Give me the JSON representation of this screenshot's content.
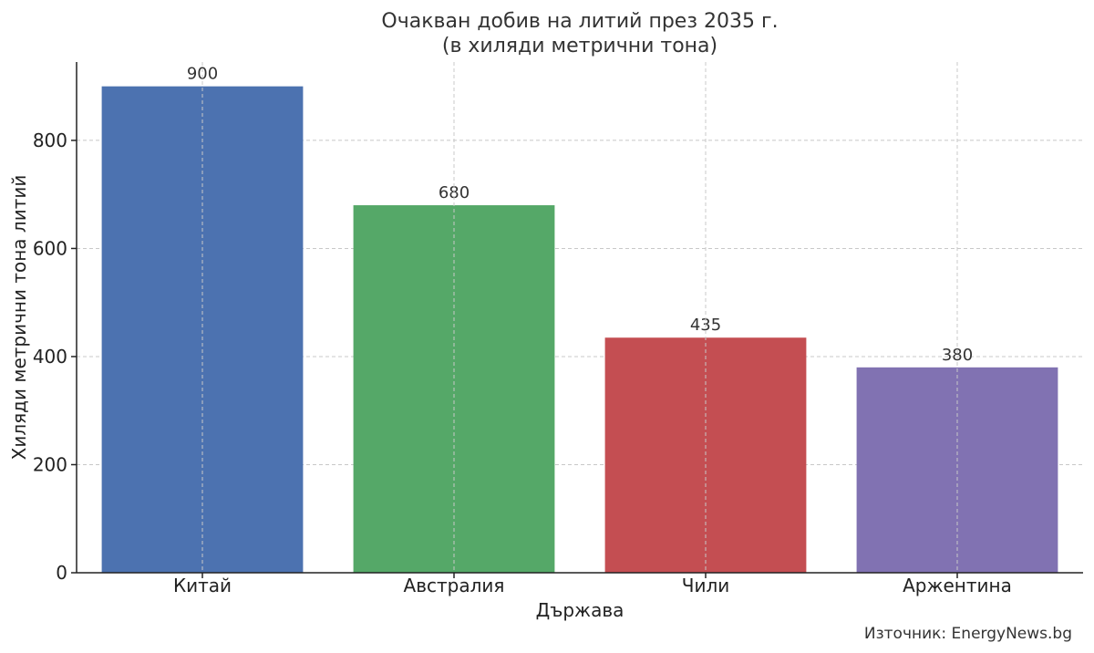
{
  "chart_data": {
    "type": "bar",
    "title_line1": "Очакван добив на литий през 2035 г.",
    "title_line2": "(в хиляди метрични тона)",
    "xlabel": "Държава",
    "ylabel": "Хиляди метрични тона литий",
    "categories": [
      "Китай",
      "Австралия",
      "Чили",
      "Аржентина"
    ],
    "values": [
      900,
      680,
      435,
      380
    ],
    "colors": [
      "#4c72b0",
      "#55a868",
      "#c44e52",
      "#8172b2"
    ],
    "ylim": [
      0,
      945
    ],
    "yticks": [
      0,
      200,
      400,
      600,
      800
    ],
    "grid": true,
    "source": "Източник: EnergyNews.bg"
  }
}
